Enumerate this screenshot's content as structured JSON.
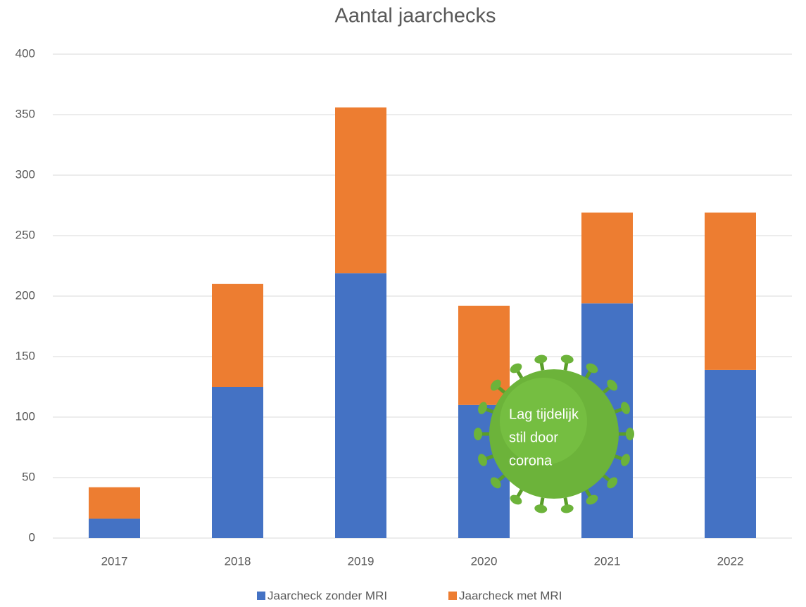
{
  "chart_data": {
    "type": "stacked_bar",
    "title": "Aantal jaarchecks",
    "categories": [
      "2017",
      "2018",
      "2019",
      "2020",
      "2021",
      "2022"
    ],
    "series": [
      {
        "name": "Jaarcheck zonder MRI",
        "color": "#4472c4",
        "values": [
          16,
          125,
          219,
          110,
          194,
          139
        ]
      },
      {
        "name": "Jaarcheck met MRI",
        "color": "#ed7d31",
        "values": [
          26,
          85,
          137,
          82,
          75,
          130
        ]
      }
    ],
    "ylim": [
      0,
      400
    ],
    "yticks": [
      0,
      50,
      100,
      150,
      200,
      250,
      300,
      350,
      400
    ],
    "grid": true,
    "legend": "bottom",
    "annotation": [
      "Lag tijdelijk",
      "stil door",
      "corona"
    ]
  }
}
